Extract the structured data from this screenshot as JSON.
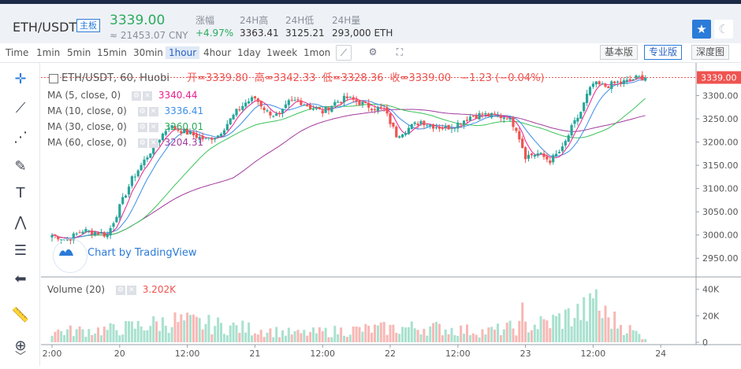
{
  "header": {
    "pair": "ETH/USDT",
    "board_tag": "主板",
    "last_price": "3339.00",
    "cny_price": "≈ 21453.07 CNY",
    "stats": [
      {
        "label": "涨幅",
        "value": "+4.97%"
      },
      {
        "label": "24H高",
        "value": "3363.41"
      },
      {
        "label": "24H低",
        "value": "3125.21"
      },
      {
        "label": "24H量",
        "value": "293,000 ETH"
      }
    ],
    "star_icon": "star-icon",
    "theme_icon": "moon-icon"
  },
  "toolbar": {
    "timeframes": [
      "Time",
      "1min",
      "5min",
      "15min",
      "30min",
      "1hour",
      "4hour",
      "1day",
      "1week",
      "1mon"
    ],
    "active_timeframe": "1hour",
    "view_buttons": [
      "基本版",
      "专业版",
      "深度图"
    ],
    "active_view": "专业版"
  },
  "legend": {
    "main_title": "ETH/USDT, 60, Huobi",
    "ohlc": {
      "open_label": "开=",
      "open": "3339.80",
      "high_label": "高=",
      "high": "3342.33",
      "low_label": "低=",
      "low": "3328.36",
      "close_label": "收=",
      "close": "3339.00",
      "change": "−1.23 (−0.04%)"
    },
    "ma": [
      {
        "name": "MA (5, close, 0)",
        "value": "3340.44",
        "color": "#e91e8c"
      },
      {
        "name": "MA (10, close, 0)",
        "value": "3336.41",
        "color": "#3b8ee8"
      },
      {
        "name": "MA (30, close, 0)",
        "value": "3260.01",
        "color": "#3cc35a"
      },
      {
        "name": "MA (60, close, 0)",
        "value": "3204.31",
        "color": "#a23a9f"
      }
    ],
    "volume_name": "Volume (20)",
    "volume_value": "3.202K"
  },
  "watermark": "Chart by TradingView",
  "colors": {
    "up": "#26a69a",
    "down": "#ef5350",
    "up_vol": "#a9e1cf",
    "down_vol": "#f7b8b5",
    "last_price_tag": "#ef5350"
  },
  "chart_data": {
    "type": "candlestick",
    "x_axis_ticks": [
      {
        "label": "2:00",
        "index": 0
      },
      {
        "label": "20",
        "index": 22
      },
      {
        "label": "12:00",
        "index": 44
      },
      {
        "label": "21",
        "index": 66
      },
      {
        "label": "12:00",
        "index": 88
      },
      {
        "label": "22",
        "index": 110
      },
      {
        "label": "12:00",
        "index": 132
      },
      {
        "label": "23",
        "index": 154
      },
      {
        "label": "12:00",
        "index": 176
      },
      {
        "label": "24",
        "index": 198
      }
    ],
    "price_axis_ticks": [
      2950,
      3000,
      3050,
      3100,
      3150,
      3200,
      3250,
      3300
    ],
    "price_ylim": [
      2930,
      3350
    ],
    "volume_axis_ticks": [
      {
        "value": 0,
        "label": "0"
      },
      {
        "value": 20000,
        "label": "20K"
      },
      {
        "value": 40000,
        "label": "40K"
      }
    ],
    "volume_ylim": [
      0,
      44000
    ],
    "last_price": 3339.0,
    "candles_close_anchors": [
      [
        0,
        3000
      ],
      [
        5,
        2990
      ],
      [
        10,
        3010
      ],
      [
        15,
        3005
      ],
      [
        18,
        3000
      ],
      [
        22,
        3060
      ],
      [
        26,
        3120
      ],
      [
        30,
        3160
      ],
      [
        34,
        3200
      ],
      [
        38,
        3235
      ],
      [
        42,
        3225
      ],
      [
        46,
        3215
      ],
      [
        50,
        3205
      ],
      [
        54,
        3215
      ],
      [
        57,
        3240
      ],
      [
        60,
        3265
      ],
      [
        63,
        3285
      ],
      [
        66,
        3295
      ],
      [
        70,
        3265
      ],
      [
        74,
        3255
      ],
      [
        77,
        3285
      ],
      [
        80,
        3290
      ],
      [
        84,
        3275
      ],
      [
        88,
        3265
      ],
      [
        92,
        3285
      ],
      [
        96,
        3295
      ],
      [
        100,
        3285
      ],
      [
        104,
        3275
      ],
      [
        108,
        3270
      ],
      [
        112,
        3215
      ],
      [
        116,
        3230
      ],
      [
        120,
        3245
      ],
      [
        124,
        3235
      ],
      [
        128,
        3230
      ],
      [
        132,
        3240
      ],
      [
        136,
        3255
      ],
      [
        140,
        3260
      ],
      [
        144,
        3255
      ],
      [
        148,
        3255
      ],
      [
        151,
        3230
      ],
      [
        154,
        3170
      ],
      [
        158,
        3175
      ],
      [
        162,
        3160
      ],
      [
        166,
        3185
      ],
      [
        169,
        3230
      ],
      [
        172,
        3265
      ],
      [
        174,
        3300
      ],
      [
        176,
        3325
      ],
      [
        180,
        3320
      ],
      [
        184,
        3328
      ],
      [
        187,
        3330
      ],
      [
        190,
        3338
      ],
      [
        192,
        3339
      ]
    ],
    "volume_profile_k": [
      [
        0,
        10
      ],
      [
        20,
        12
      ],
      [
        40,
        20
      ],
      [
        60,
        14
      ],
      [
        80,
        8
      ],
      [
        100,
        12
      ],
      [
        120,
        14
      ],
      [
        140,
        10
      ],
      [
        160,
        18
      ],
      [
        175,
        32
      ],
      [
        185,
        15
      ],
      [
        192,
        4
      ]
    ]
  }
}
